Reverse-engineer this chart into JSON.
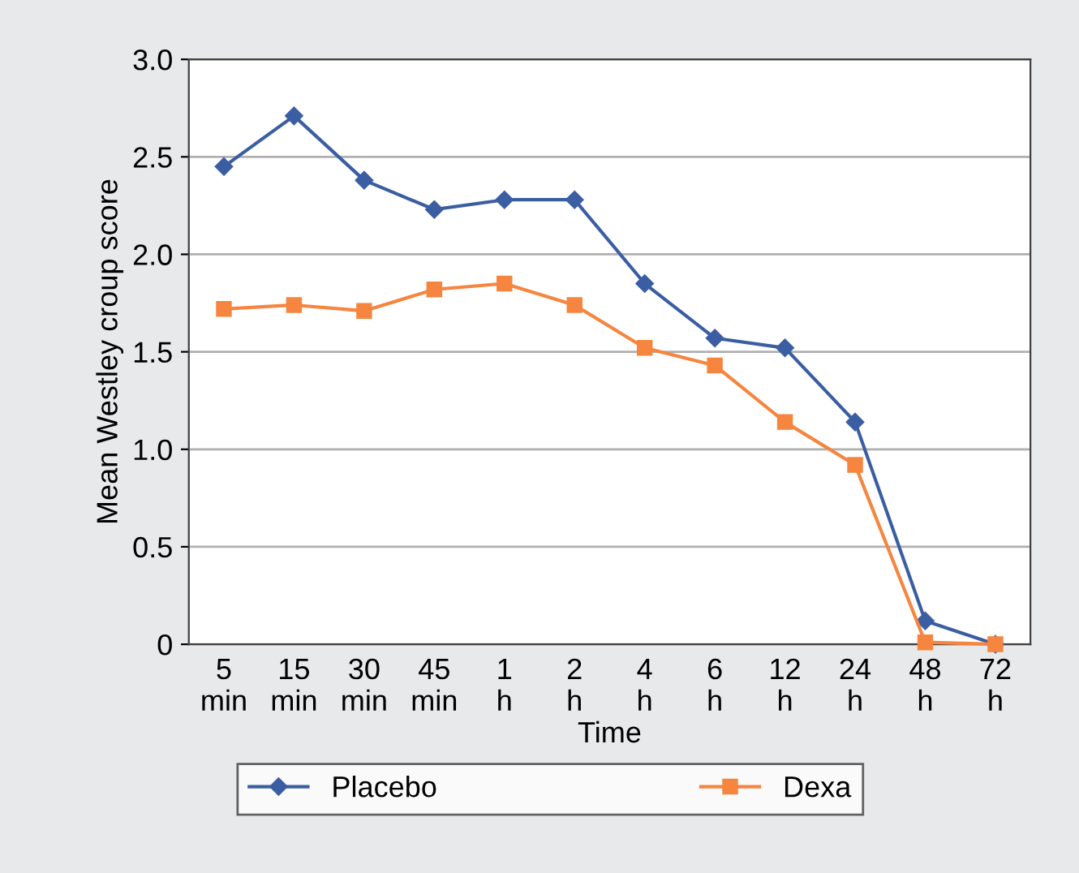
{
  "chart_data": {
    "type": "line",
    "xlabel": "Time",
    "ylabel": "Mean Westley croup score",
    "categories": [
      "5\nmin",
      "15\nmin",
      "30\nmin",
      "45\nmin",
      "1\nh",
      "2\nh",
      "4\nh",
      "6\nh",
      "12\nh",
      "24\nh",
      "48\nh",
      "72\nh"
    ],
    "series": [
      {
        "name": "Placebo",
        "color": "#3b5ea3",
        "marker": "diamond",
        "values": [
          2.45,
          2.71,
          2.38,
          2.23,
          2.28,
          2.28,
          1.85,
          1.57,
          1.52,
          1.14,
          0.12,
          0.0
        ]
      },
      {
        "name": "Dexa",
        "color": "#f5853f",
        "marker": "square",
        "values": [
          1.72,
          1.74,
          1.71,
          1.82,
          1.85,
          1.74,
          1.52,
          1.43,
          1.14,
          0.92,
          0.01,
          0.0
        ]
      }
    ],
    "ylim": [
      0,
      3
    ],
    "yticks": [
      {
        "value": 0,
        "label": "0"
      },
      {
        "value": 0.5,
        "label": "0.5"
      },
      {
        "value": 1,
        "label": "1.0"
      },
      {
        "value": 1.5,
        "label": "1.5"
      },
      {
        "value": 2,
        "label": "2.0"
      },
      {
        "value": 2.5,
        "label": "2.5"
      },
      {
        "value": 3,
        "label": "3.0"
      }
    ],
    "grid": "y",
    "legend": "bottom",
    "line_style": "solid"
  }
}
